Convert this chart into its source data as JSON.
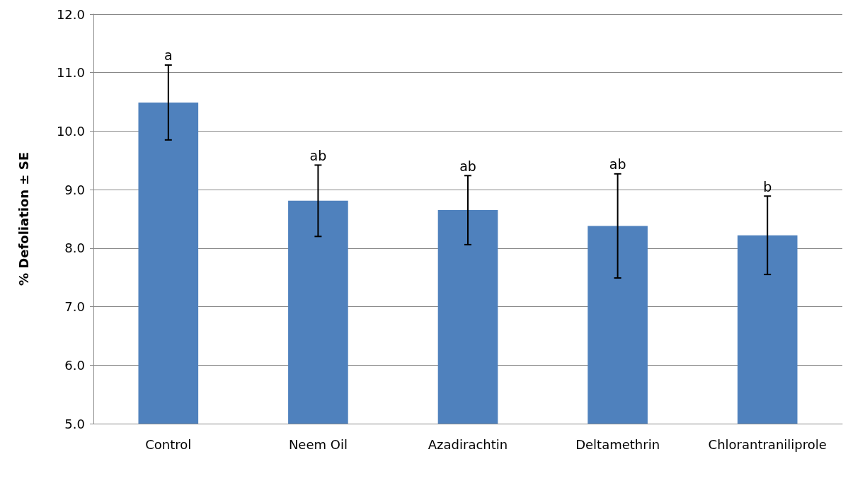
{
  "chart_data": {
    "type": "bar",
    "ylabel": "% Defoliation ± SE",
    "categories": [
      "Control",
      "Neem Oil",
      "Azadirachtin",
      "Deltamethrin",
      "Chlorantraniliprole"
    ],
    "values": [
      10.49,
      8.81,
      8.65,
      8.38,
      8.22
    ],
    "errors": [
      0.64,
      0.61,
      0.59,
      0.89,
      0.67
    ],
    "color": "#4f81bd",
    "ylim": [
      5,
      12
    ],
    "yticks": [
      {
        "value": 5,
        "label": "5.0"
      },
      {
        "value": 6,
        "label": "6.0"
      },
      {
        "value": 7,
        "label": "7.0"
      },
      {
        "value": 8,
        "label": "8.0"
      },
      {
        "value": 9,
        "label": "9.0"
      },
      {
        "value": 10,
        "label": "10.0"
      },
      {
        "value": 11,
        "label": "11.0"
      },
      {
        "value": 12,
        "label": "12.0"
      }
    ],
    "grid": "y",
    "annotations": [
      {
        "text": "a",
        "x": "Control",
        "y": 11.13
      },
      {
        "text": "ab",
        "x": "Neem Oil",
        "y": 9.42
      },
      {
        "text": "ab",
        "x": "Azadirachtin",
        "y": 9.24
      },
      {
        "text": "ab",
        "x": "Deltamethrin",
        "y": 9.27
      },
      {
        "text": "b",
        "x": "Chlorantraniliprole",
        "y": 8.89
      }
    ]
  }
}
